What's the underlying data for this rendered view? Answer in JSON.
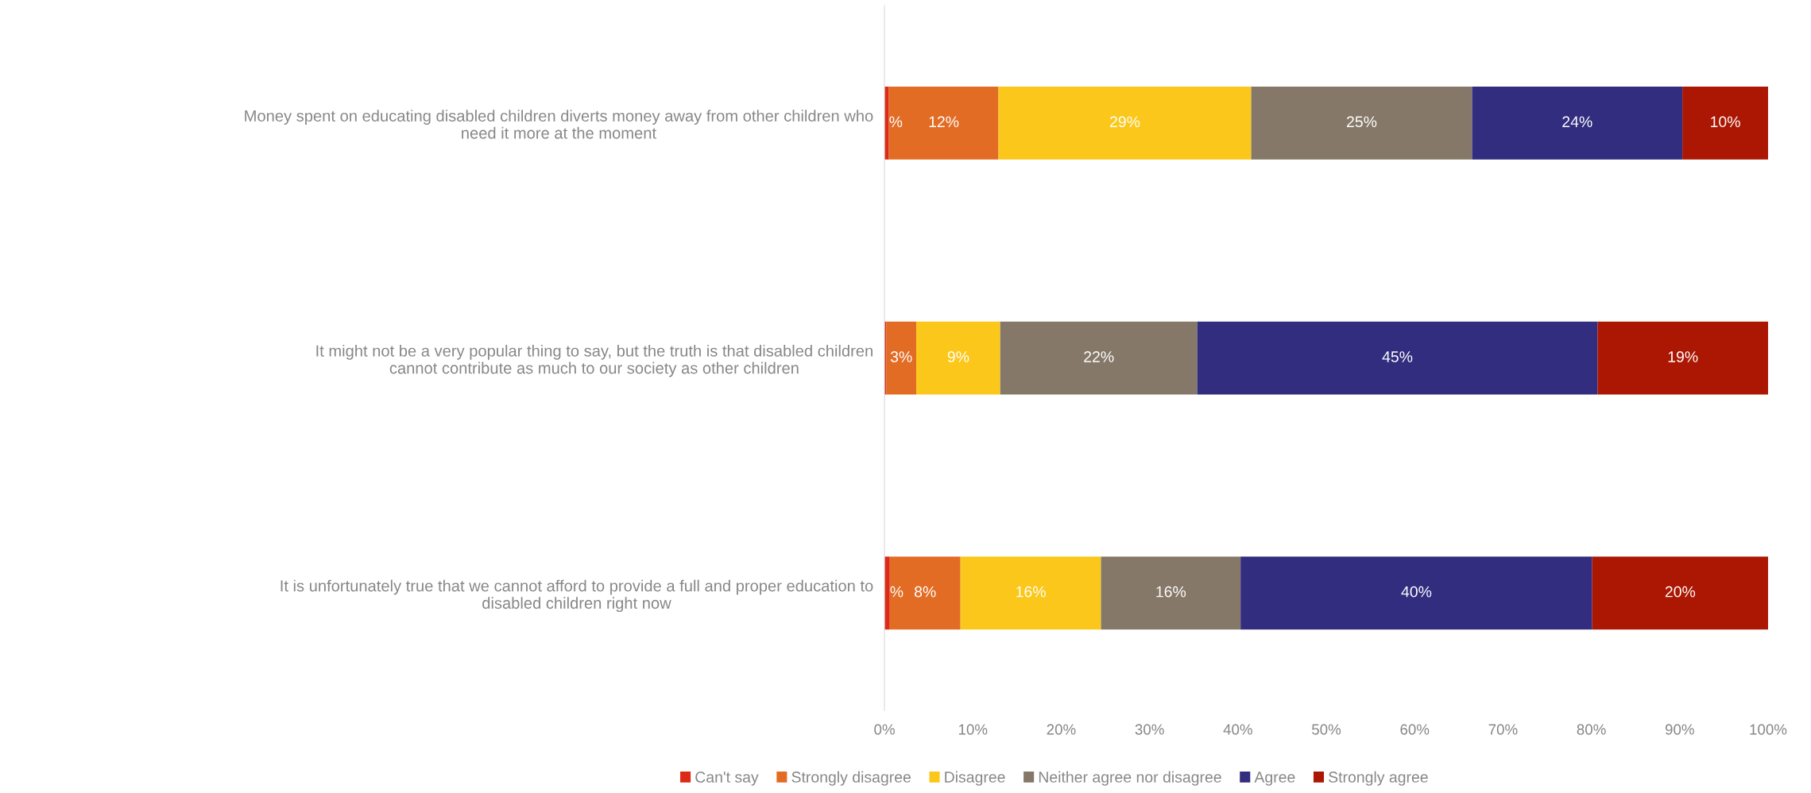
{
  "chart_data": {
    "type": "bar",
    "orientation": "horizontal",
    "stacked": true,
    "categories": [
      "Money spent on educating disabled children diverts money away from other children who need it more at the moment",
      "It might not be a very popular thing to say, but the truth is that disabled children cannot contribute as much to our society as other children",
      "It is unfortunately true that we cannot afford to provide a full and proper education to disabled children right now"
    ],
    "series": [
      {
        "name": "Can't say",
        "color": "#dc2a16",
        "values": [
          0.5,
          0.2,
          0.6
        ],
        "value_labels": [
          "%",
          null,
          "%"
        ]
      },
      {
        "name": "Strongly disagree",
        "color": "#e36c25",
        "values": [
          12.4,
          3.4,
          8.0
        ],
        "value_labels": [
          "12%",
          "3%",
          "8%"
        ]
      },
      {
        "name": "Disagree",
        "color": "#fbc71a",
        "values": [
          28.6,
          9.5,
          15.9
        ],
        "value_labels": [
          "29%",
          "9%",
          "16%"
        ]
      },
      {
        "name": "Neither agree nor disagree",
        "color": "#857868",
        "values": [
          25.0,
          22.3,
          15.8
        ],
        "value_labels": [
          "25%",
          "22%",
          "16%"
        ]
      },
      {
        "name": "Agree",
        "color": "#322d7f",
        "values": [
          23.8,
          45.3,
          39.8
        ],
        "value_labels": [
          "24%",
          "45%",
          "40%"
        ]
      },
      {
        "name": "Strongly agree",
        "color": "#ab1703",
        "values": [
          9.7,
          19.3,
          19.9
        ],
        "value_labels": [
          "10%",
          "19%",
          "20%"
        ]
      }
    ],
    "xlim": [
      0,
      100
    ],
    "xticks": [
      {
        "value": 0,
        "label": "0%"
      },
      {
        "value": 10,
        "label": "10%"
      },
      {
        "value": 20,
        "label": "20%"
      },
      {
        "value": 30,
        "label": "30%"
      },
      {
        "value": 40,
        "label": "40%"
      },
      {
        "value": 50,
        "label": "50%"
      },
      {
        "value": 60,
        "label": "60%"
      },
      {
        "value": 70,
        "label": "70%"
      },
      {
        "value": 80,
        "label": "80%"
      },
      {
        "value": 90,
        "label": "90%"
      },
      {
        "value": 100,
        "label": "100%"
      }
    ],
    "grid": false,
    "legend": "bottom"
  }
}
